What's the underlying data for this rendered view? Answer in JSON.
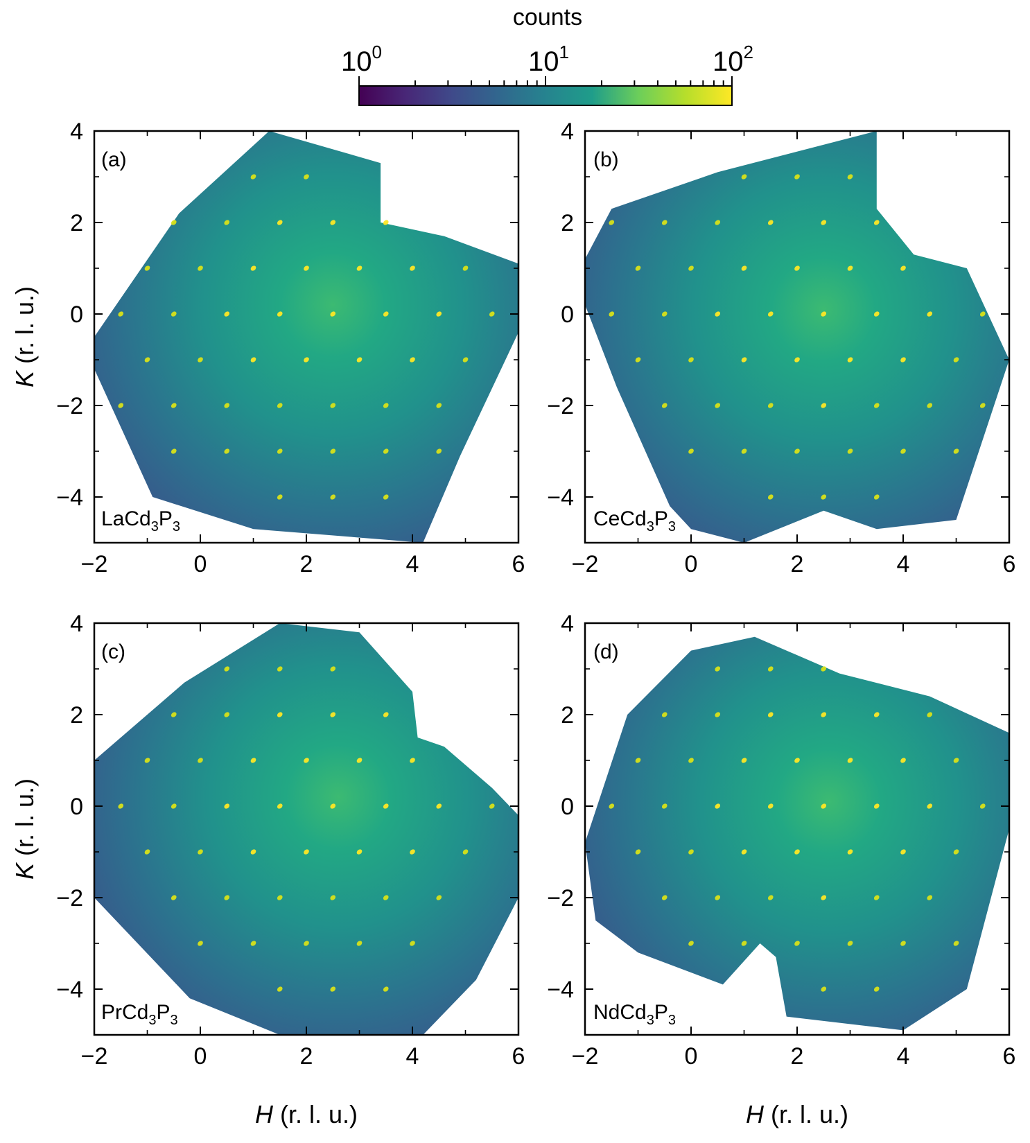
{
  "colorbar": {
    "title": "counts",
    "scale": "log",
    "range": [
      1,
      100
    ],
    "ticks": [
      {
        "value": 1,
        "base": "10",
        "exp": "0"
      },
      {
        "value": 10,
        "base": "10",
        "exp": "1"
      },
      {
        "value": 100,
        "base": "10",
        "exp": "2"
      }
    ],
    "colormap": "viridis",
    "stops": [
      "#440154",
      "#482777",
      "#3f4a8a",
      "#31678e",
      "#26838f",
      "#1f9d8a",
      "#6cce5a",
      "#b6de2b",
      "#fee825"
    ]
  },
  "chart_data": [
    {
      "type": "heatmap",
      "panel": "(a)",
      "sample": {
        "base": "LaCd",
        "sub1": "3",
        "mid": "P",
        "sub2": "3"
      },
      "xlabel": {
        "italic": "H",
        "rest": " (r. l. u.)"
      },
      "ylabel": {
        "italic": "K",
        "rest": " (r. l. u.)"
      },
      "xlim": [
        -2,
        6
      ],
      "ylim": [
        -5,
        4
      ],
      "xticks": [
        {
          "v": -2,
          "t": "−2"
        },
        {
          "v": 0,
          "t": "0"
        },
        {
          "v": 2,
          "t": "2"
        },
        {
          "v": 4,
          "t": "4"
        },
        {
          "v": 6,
          "t": "6"
        }
      ],
      "yticks": [
        {
          "v": -4,
          "t": "−4"
        },
        {
          "v": -2,
          "t": "−2"
        },
        {
          "v": 0,
          "t": "0"
        },
        {
          "v": 2,
          "t": "2"
        },
        {
          "v": 4,
          "t": "4"
        }
      ],
      "coverage_polygon": [
        [
          -2,
          -0.5
        ],
        [
          -0.4,
          2.2
        ],
        [
          1.3,
          4.0
        ],
        [
          3.4,
          3.3
        ],
        [
          3.4,
          2.0
        ],
        [
          4.6,
          1.7
        ],
        [
          6,
          1.1
        ],
        [
          6,
          -0.4
        ],
        [
          4.9,
          -3.1
        ],
        [
          4.2,
          -5.0
        ],
        [
          1.0,
          -4.7
        ],
        [
          -0.9,
          -4.0
        ],
        [
          -2,
          -1.2
        ]
      ],
      "diffuse_center": [
        2.5,
        0.2
      ],
      "bragg_peaks": [
        [
          1,
          3
        ],
        [
          2,
          3
        ],
        [
          -0.5,
          2
        ],
        [
          0.5,
          2
        ],
        [
          1.5,
          2
        ],
        [
          2.5,
          2
        ],
        [
          3.5,
          2
        ],
        [
          -1,
          1
        ],
        [
          0,
          1
        ],
        [
          1,
          1
        ],
        [
          2,
          1
        ],
        [
          3,
          1
        ],
        [
          4,
          1
        ],
        [
          5,
          1
        ],
        [
          -1.5,
          0
        ],
        [
          -0.5,
          0
        ],
        [
          0.5,
          0
        ],
        [
          1.5,
          0
        ],
        [
          2.5,
          0
        ],
        [
          3.5,
          0
        ],
        [
          4.5,
          0
        ],
        [
          5.5,
          0
        ],
        [
          -1,
          -1
        ],
        [
          0,
          -1
        ],
        [
          1,
          -1
        ],
        [
          2,
          -1
        ],
        [
          3,
          -1
        ],
        [
          4,
          -1
        ],
        [
          5,
          -1
        ],
        [
          -1.5,
          -2
        ],
        [
          -0.5,
          -2
        ],
        [
          0.5,
          -2
        ],
        [
          1.5,
          -2
        ],
        [
          2.5,
          -2
        ],
        [
          3.5,
          -2
        ],
        [
          4.5,
          -2
        ],
        [
          -0.5,
          -3
        ],
        [
          0.5,
          -3
        ],
        [
          1.5,
          -3
        ],
        [
          2.5,
          -3
        ],
        [
          3.5,
          -3
        ],
        [
          4.5,
          -3
        ],
        [
          1.5,
          -4
        ],
        [
          2.5,
          -4
        ],
        [
          3.5,
          -4
        ]
      ]
    },
    {
      "type": "heatmap",
      "panel": "(b)",
      "sample": {
        "base": "CeCd",
        "sub1": "3",
        "mid": "P",
        "sub2": "3"
      },
      "xlabel": {
        "italic": "H",
        "rest": " (r. l. u.)"
      },
      "ylabel": {
        "italic": "K",
        "rest": " (r. l. u.)"
      },
      "xlim": [
        -2,
        6
      ],
      "ylim": [
        -5,
        4
      ],
      "xticks": [
        {
          "v": -2,
          "t": "−2"
        },
        {
          "v": 0,
          "t": "0"
        },
        {
          "v": 2,
          "t": "2"
        },
        {
          "v": 4,
          "t": "4"
        },
        {
          "v": 6,
          "t": "6"
        }
      ],
      "yticks": [
        {
          "v": -4,
          "t": "−4"
        },
        {
          "v": -2,
          "t": "−2"
        },
        {
          "v": 0,
          "t": "0"
        },
        {
          "v": 2,
          "t": "2"
        },
        {
          "v": 4,
          "t": "4"
        }
      ],
      "coverage_polygon": [
        [
          -2,
          1.2
        ],
        [
          -1.5,
          2.3
        ],
        [
          0.5,
          3.1
        ],
        [
          3.5,
          4.0
        ],
        [
          3.5,
          2.3
        ],
        [
          4.2,
          1.3
        ],
        [
          5.2,
          1.0
        ],
        [
          6,
          -1.0
        ],
        [
          5.0,
          -4.5
        ],
        [
          3.5,
          -4.7
        ],
        [
          2.5,
          -4.3
        ],
        [
          1.0,
          -5.0
        ],
        [
          0.0,
          -4.7
        ],
        [
          -0.4,
          -4.2
        ],
        [
          -1.4,
          -1.6
        ],
        [
          -2,
          0.2
        ]
      ],
      "diffuse_center": [
        2.5,
        0.1
      ],
      "bragg_peaks": [
        [
          1,
          3
        ],
        [
          2,
          3
        ],
        [
          3,
          3
        ],
        [
          -1.5,
          2
        ],
        [
          -0.5,
          2
        ],
        [
          0.5,
          2
        ],
        [
          1.5,
          2
        ],
        [
          2.5,
          2
        ],
        [
          3.5,
          2
        ],
        [
          -1,
          1
        ],
        [
          0,
          1
        ],
        [
          1,
          1
        ],
        [
          2,
          1
        ],
        [
          3,
          1
        ],
        [
          4,
          1
        ],
        [
          -1.5,
          0
        ],
        [
          -0.5,
          0
        ],
        [
          0.5,
          0
        ],
        [
          1.5,
          0
        ],
        [
          2.5,
          0
        ],
        [
          3.5,
          0
        ],
        [
          4.5,
          0
        ],
        [
          5.5,
          0
        ],
        [
          -1,
          -1
        ],
        [
          0,
          -1
        ],
        [
          1,
          -1
        ],
        [
          2,
          -1
        ],
        [
          3,
          -1
        ],
        [
          4,
          -1
        ],
        [
          5,
          -1
        ],
        [
          -0.5,
          -2
        ],
        [
          0.5,
          -2
        ],
        [
          1.5,
          -2
        ],
        [
          2.5,
          -2
        ],
        [
          3.5,
          -2
        ],
        [
          4.5,
          -2
        ],
        [
          5.5,
          -2
        ],
        [
          0,
          -3
        ],
        [
          1,
          -3
        ],
        [
          2,
          -3
        ],
        [
          3,
          -3
        ],
        [
          4,
          -3
        ],
        [
          5,
          -3
        ],
        [
          1.5,
          -4
        ],
        [
          2.5,
          -4
        ],
        [
          3.5,
          -4
        ]
      ]
    },
    {
      "type": "heatmap",
      "panel": "(c)",
      "sample": {
        "base": "PrCd",
        "sub1": "3",
        "mid": "P",
        "sub2": "3"
      },
      "xlabel": {
        "italic": "H",
        "rest": " (r. l. u.)"
      },
      "ylabel": {
        "italic": "K",
        "rest": " (r. l. u.)"
      },
      "xlim": [
        -2,
        6
      ],
      "ylim": [
        -5,
        4
      ],
      "xticks": [
        {
          "v": -2,
          "t": "−2"
        },
        {
          "v": 0,
          "t": "0"
        },
        {
          "v": 2,
          "t": "2"
        },
        {
          "v": 4,
          "t": "4"
        },
        {
          "v": 6,
          "t": "6"
        }
      ],
      "yticks": [
        {
          "v": -4,
          "t": "−4"
        },
        {
          "v": -2,
          "t": "−2"
        },
        {
          "v": 0,
          "t": "0"
        },
        {
          "v": 2,
          "t": "2"
        },
        {
          "v": 4,
          "t": "4"
        }
      ],
      "coverage_polygon": [
        [
          -2,
          1.0
        ],
        [
          -0.3,
          2.7
        ],
        [
          1.5,
          4.0
        ],
        [
          3.0,
          3.8
        ],
        [
          4.0,
          2.5
        ],
        [
          4.1,
          1.5
        ],
        [
          4.6,
          1.3
        ],
        [
          5.5,
          0.4
        ],
        [
          6,
          -0.2
        ],
        [
          6,
          -2.0
        ],
        [
          5.2,
          -3.8
        ],
        [
          4.2,
          -5.0
        ],
        [
          1.5,
          -5.0
        ],
        [
          -0.2,
          -4.2
        ],
        [
          -2,
          -2.0
        ]
      ],
      "diffuse_center": [
        2.6,
        0.2
      ],
      "bragg_peaks": [
        [
          0.5,
          3
        ],
        [
          1.5,
          3
        ],
        [
          2.5,
          3
        ],
        [
          -0.5,
          2
        ],
        [
          0.5,
          2
        ],
        [
          1.5,
          2
        ],
        [
          2.5,
          2
        ],
        [
          3.5,
          2
        ],
        [
          -1,
          1
        ],
        [
          0,
          1
        ],
        [
          1,
          1
        ],
        [
          2,
          1
        ],
        [
          3,
          1
        ],
        [
          4,
          1
        ],
        [
          -1.5,
          0
        ],
        [
          -0.5,
          0
        ],
        [
          0.5,
          0
        ],
        [
          1.5,
          0
        ],
        [
          2.5,
          0
        ],
        [
          3.5,
          0
        ],
        [
          4.5,
          0
        ],
        [
          5.5,
          0
        ],
        [
          -1,
          -1
        ],
        [
          0,
          -1
        ],
        [
          1,
          -1
        ],
        [
          2,
          -1
        ],
        [
          3,
          -1
        ],
        [
          4,
          -1
        ],
        [
          5,
          -1
        ],
        [
          -0.5,
          -2
        ],
        [
          0.5,
          -2
        ],
        [
          1.5,
          -2
        ],
        [
          2.5,
          -2
        ],
        [
          3.5,
          -2
        ],
        [
          4.5,
          -2
        ],
        [
          0,
          -3
        ],
        [
          1,
          -3
        ],
        [
          2,
          -3
        ],
        [
          3,
          -3
        ],
        [
          4,
          -3
        ],
        [
          1.5,
          -4
        ],
        [
          2.5,
          -4
        ],
        [
          3.5,
          -4
        ]
      ]
    },
    {
      "type": "heatmap",
      "panel": "(d)",
      "sample": {
        "base": "NdCd",
        "sub1": "3",
        "mid": "P",
        "sub2": "3"
      },
      "xlabel": {
        "italic": "H",
        "rest": " (r. l. u.)"
      },
      "ylabel": {
        "italic": "K",
        "rest": " (r. l. u.)"
      },
      "xlim": [
        -2,
        6
      ],
      "ylim": [
        -5,
        4
      ],
      "xticks": [
        {
          "v": -2,
          "t": "−2"
        },
        {
          "v": 0,
          "t": "0"
        },
        {
          "v": 2,
          "t": "2"
        },
        {
          "v": 4,
          "t": "4"
        },
        {
          "v": 6,
          "t": "6"
        }
      ],
      "yticks": [
        {
          "v": -4,
          "t": "−4"
        },
        {
          "v": -2,
          "t": "−2"
        },
        {
          "v": 0,
          "t": "0"
        },
        {
          "v": 2,
          "t": "2"
        },
        {
          "v": 4,
          "t": "4"
        }
      ],
      "coverage_polygon": [
        [
          -1.2,
          2.0
        ],
        [
          0.0,
          3.4
        ],
        [
          1.2,
          3.7
        ],
        [
          2.8,
          2.9
        ],
        [
          4.5,
          2.4
        ],
        [
          6,
          1.6
        ],
        [
          6,
          -0.5
        ],
        [
          5.2,
          -4.0
        ],
        [
          4.0,
          -4.9
        ],
        [
          1.8,
          -4.6
        ],
        [
          1.6,
          -3.3
        ],
        [
          1.3,
          -3.0
        ],
        [
          0.6,
          -3.9
        ],
        [
          -1.0,
          -3.2
        ],
        [
          -1.8,
          -2.5
        ],
        [
          -2,
          -0.8
        ]
      ],
      "diffuse_center": [
        2.6,
        0.1
      ],
      "bragg_peaks": [
        [
          0.5,
          3
        ],
        [
          1.5,
          3
        ],
        [
          2.5,
          3
        ],
        [
          -0.5,
          2
        ],
        [
          0.5,
          2
        ],
        [
          1.5,
          2
        ],
        [
          2.5,
          2
        ],
        [
          3.5,
          2
        ],
        [
          4.5,
          2
        ],
        [
          -1,
          1
        ],
        [
          0,
          1
        ],
        [
          1,
          1
        ],
        [
          2,
          1
        ],
        [
          3,
          1
        ],
        [
          4,
          1
        ],
        [
          5,
          1
        ],
        [
          -1.5,
          0
        ],
        [
          -0.5,
          0
        ],
        [
          0.5,
          0
        ],
        [
          1.5,
          0
        ],
        [
          2.5,
          0
        ],
        [
          3.5,
          0
        ],
        [
          4.5,
          0
        ],
        [
          5.5,
          0
        ],
        [
          -1,
          -1
        ],
        [
          0,
          -1
        ],
        [
          1,
          -1
        ],
        [
          2,
          -1
        ],
        [
          3,
          -1
        ],
        [
          4,
          -1
        ],
        [
          5,
          -1
        ],
        [
          -0.5,
          -2
        ],
        [
          0.5,
          -2
        ],
        [
          1.5,
          -2
        ],
        [
          2.5,
          -2
        ],
        [
          3.5,
          -2
        ],
        [
          4.5,
          -2
        ],
        [
          0,
          -3
        ],
        [
          1,
          -3
        ],
        [
          2,
          -3
        ],
        [
          3,
          -3
        ],
        [
          4,
          -3
        ],
        [
          5,
          -3
        ],
        [
          2.5,
          -4
        ],
        [
          3.5,
          -4
        ]
      ]
    }
  ]
}
